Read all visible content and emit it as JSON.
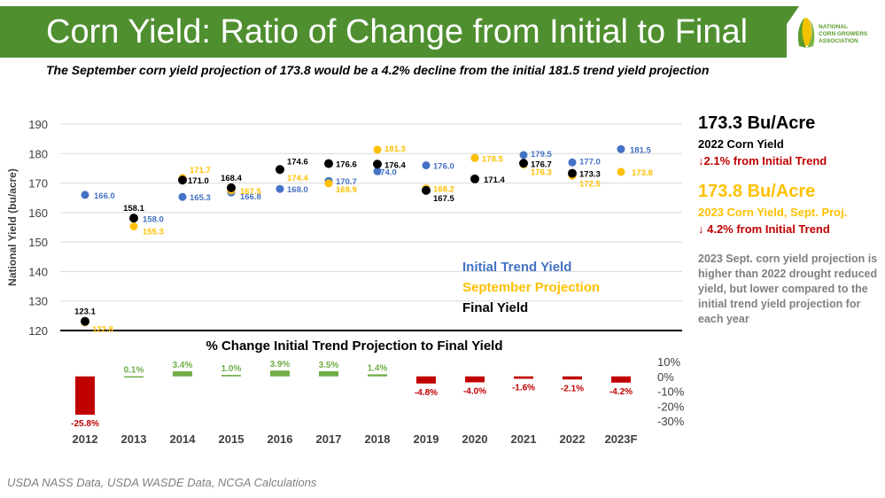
{
  "header": {
    "title": "Corn Yield: Ratio of Change from Initial to Final",
    "subtitle": "The September corn yield projection of 173.8 would be a 4.2% decline from the initial 181.5 trend yield projection",
    "logo_line1": "NATIONAL",
    "logo_line2": "CORN GROWERS",
    "logo_line3": "ASSOCIATION"
  },
  "colors": {
    "banner": "#4f8f2f",
    "initial": "#4472c4",
    "september": "#ffc000",
    "final": "#000000",
    "positive_bar": "#70ad47",
    "negative_bar": "#c00000"
  },
  "chart_data": [
    {
      "type": "scatter",
      "ylabel": "National Yield (bu/acre)",
      "ylim": [
        120,
        190
      ],
      "yticks": [
        "120",
        "130",
        "140",
        "150",
        "160",
        "170",
        "180",
        "190"
      ],
      "categories": [
        "2012",
        "2013",
        "2014",
        "2015",
        "2016",
        "2017",
        "2018",
        "2019",
        "2020",
        "2021",
        "2022",
        "2023F"
      ],
      "legend_position": "center-right",
      "series": [
        {
          "name": "Initial Trend Yield",
          "color": "#4472c4",
          "values": [
            166.0,
            158.0,
            165.3,
            166.8,
            168.0,
            170.7,
            174.0,
            176.0,
            178.5,
            179.5,
            177.0,
            181.5
          ],
          "labels": [
            "166.0",
            "158.0",
            "165.3",
            "166.8",
            "168.0",
            "170.7",
            "174.0",
            "176.0",
            "",
            "179.5",
            "177.0",
            "181.5"
          ]
        },
        {
          "name": "September Projection",
          "color": "#ffc000",
          "values": [
            122.8,
            155.3,
            171.7,
            167.5,
            174.4,
            169.9,
            181.3,
            168.2,
            178.5,
            176.3,
            172.5,
            173.8
          ],
          "labels": [
            "122.8",
            "155.3",
            "171.7",
            "167.5",
            "174.4",
            "169.9",
            "181.3",
            "168.2",
            "178.5",
            "176.3",
            "172.5",
            "173.8"
          ]
        },
        {
          "name": "Final Yield",
          "color": "#000000",
          "values": [
            123.1,
            158.1,
            171.0,
            168.4,
            174.6,
            176.6,
            176.4,
            167.5,
            171.4,
            176.7,
            173.3,
            null
          ],
          "labels": [
            "123.1",
            "158.1",
            "171.0",
            "168.4",
            "174.6",
            "176.6",
            "176.4",
            "167.5",
            "171.4",
            "176.7",
            "173.3",
            ""
          ]
        }
      ]
    },
    {
      "type": "bar",
      "title": "% Change Initial Trend Projection to Final Yield",
      "categories": [
        "2012",
        "2013",
        "2014",
        "2015",
        "2016",
        "2017",
        "2018",
        "2019",
        "2020",
        "2021",
        "2022",
        "2023F"
      ],
      "values": [
        -25.8,
        0.1,
        3.4,
        1.0,
        3.9,
        3.5,
        1.4,
        -4.8,
        -4.0,
        -1.6,
        -2.1,
        -4.2
      ],
      "value_labels": [
        "-25.8%",
        "0.1%",
        "3.4%",
        "1.0%",
        "3.9%",
        "3.5%",
        "1.4%",
        "-4.8%",
        "-4.0%",
        "-1.6%",
        "-2.1%",
        "-4.2%"
      ],
      "ylim": [
        -30,
        10
      ],
      "yticks": [
        "10%",
        "0%",
        "-10%",
        "-20%",
        "-30%"
      ],
      "grid": false
    }
  ],
  "sidebar": {
    "box1_big": "173.3 Bu/Acre",
    "box1_small": "2022 Corn Yield",
    "box1_change": "↓2.1% from Initial Trend",
    "box2_big": "173.8 Bu/Acre",
    "box2_small": "2023 Corn Yield, Sept. Proj.",
    "box2_change": "↓ 4.2% from Initial Trend",
    "note": "2023 Sept. corn yield projection is higher than 2022 drought reduced yield, but lower compared to the initial trend yield projection for each year"
  },
  "source": "USDA NASS Data, USDA WASDE Data, NCGA Calculations"
}
